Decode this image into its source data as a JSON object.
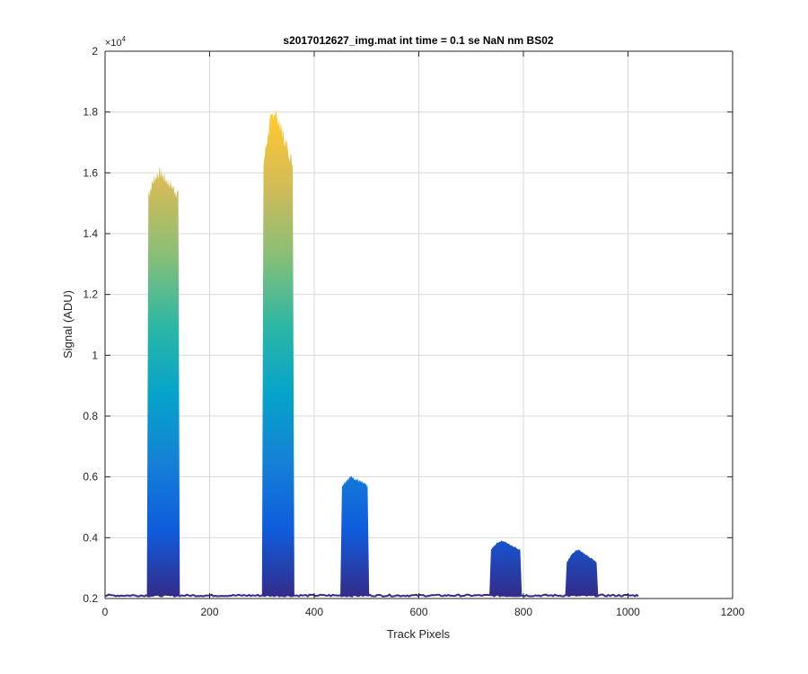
{
  "chart_data": {
    "type": "area",
    "title": "s2017012627_img.mat int time = 0.1 se  NaN nm BS02",
    "xlabel": "Track Pixels",
    "ylabel": "Signal (ADU)",
    "xlim": [
      0,
      1200
    ],
    "ylim": [
      2000,
      20000
    ],
    "y_exponent_label": "×10",
    "y_exponent_power": "4",
    "x_ticks": [
      0,
      200,
      400,
      600,
      800,
      1000,
      1200
    ],
    "x_tick_labels": [
      "0",
      "200",
      "400",
      "600",
      "800",
      "1000",
      "1200"
    ],
    "y_ticks": [
      2000,
      4000,
      6000,
      8000,
      10000,
      12000,
      14000,
      16000,
      18000,
      20000
    ],
    "y_tick_labels": [
      "0.2",
      "0.4",
      "0.6",
      "0.8",
      "1",
      "1.2",
      "1.4",
      "1.6",
      "1.8",
      "2"
    ],
    "grid": true,
    "colormap": [
      "#352a87",
      "#0f5cdd",
      "#1481d6",
      "#06a4ca",
      "#2eb7a4",
      "#87bf77",
      "#d1bb59",
      "#fec832",
      "#f9fb0e"
    ],
    "baseline_color": "#352a87",
    "baseline": {
      "x_start": 0,
      "x_end": 1020,
      "value": 2100
    },
    "peaks": [
      {
        "x_start": 80,
        "x_end": 143,
        "peak": 16000,
        "shoulder": 15300
      },
      {
        "x_start": 300,
        "x_end": 362,
        "peak": 18000,
        "shoulder": 16300
      },
      {
        "x_start": 450,
        "x_end": 505,
        "peak": 6000,
        "shoulder": 5700
      },
      {
        "x_start": 735,
        "x_end": 797,
        "peak": 3900,
        "shoulder": 3600
      },
      {
        "x_start": 880,
        "x_end": 943,
        "peak": 3600,
        "shoulder": 3200
      }
    ]
  }
}
